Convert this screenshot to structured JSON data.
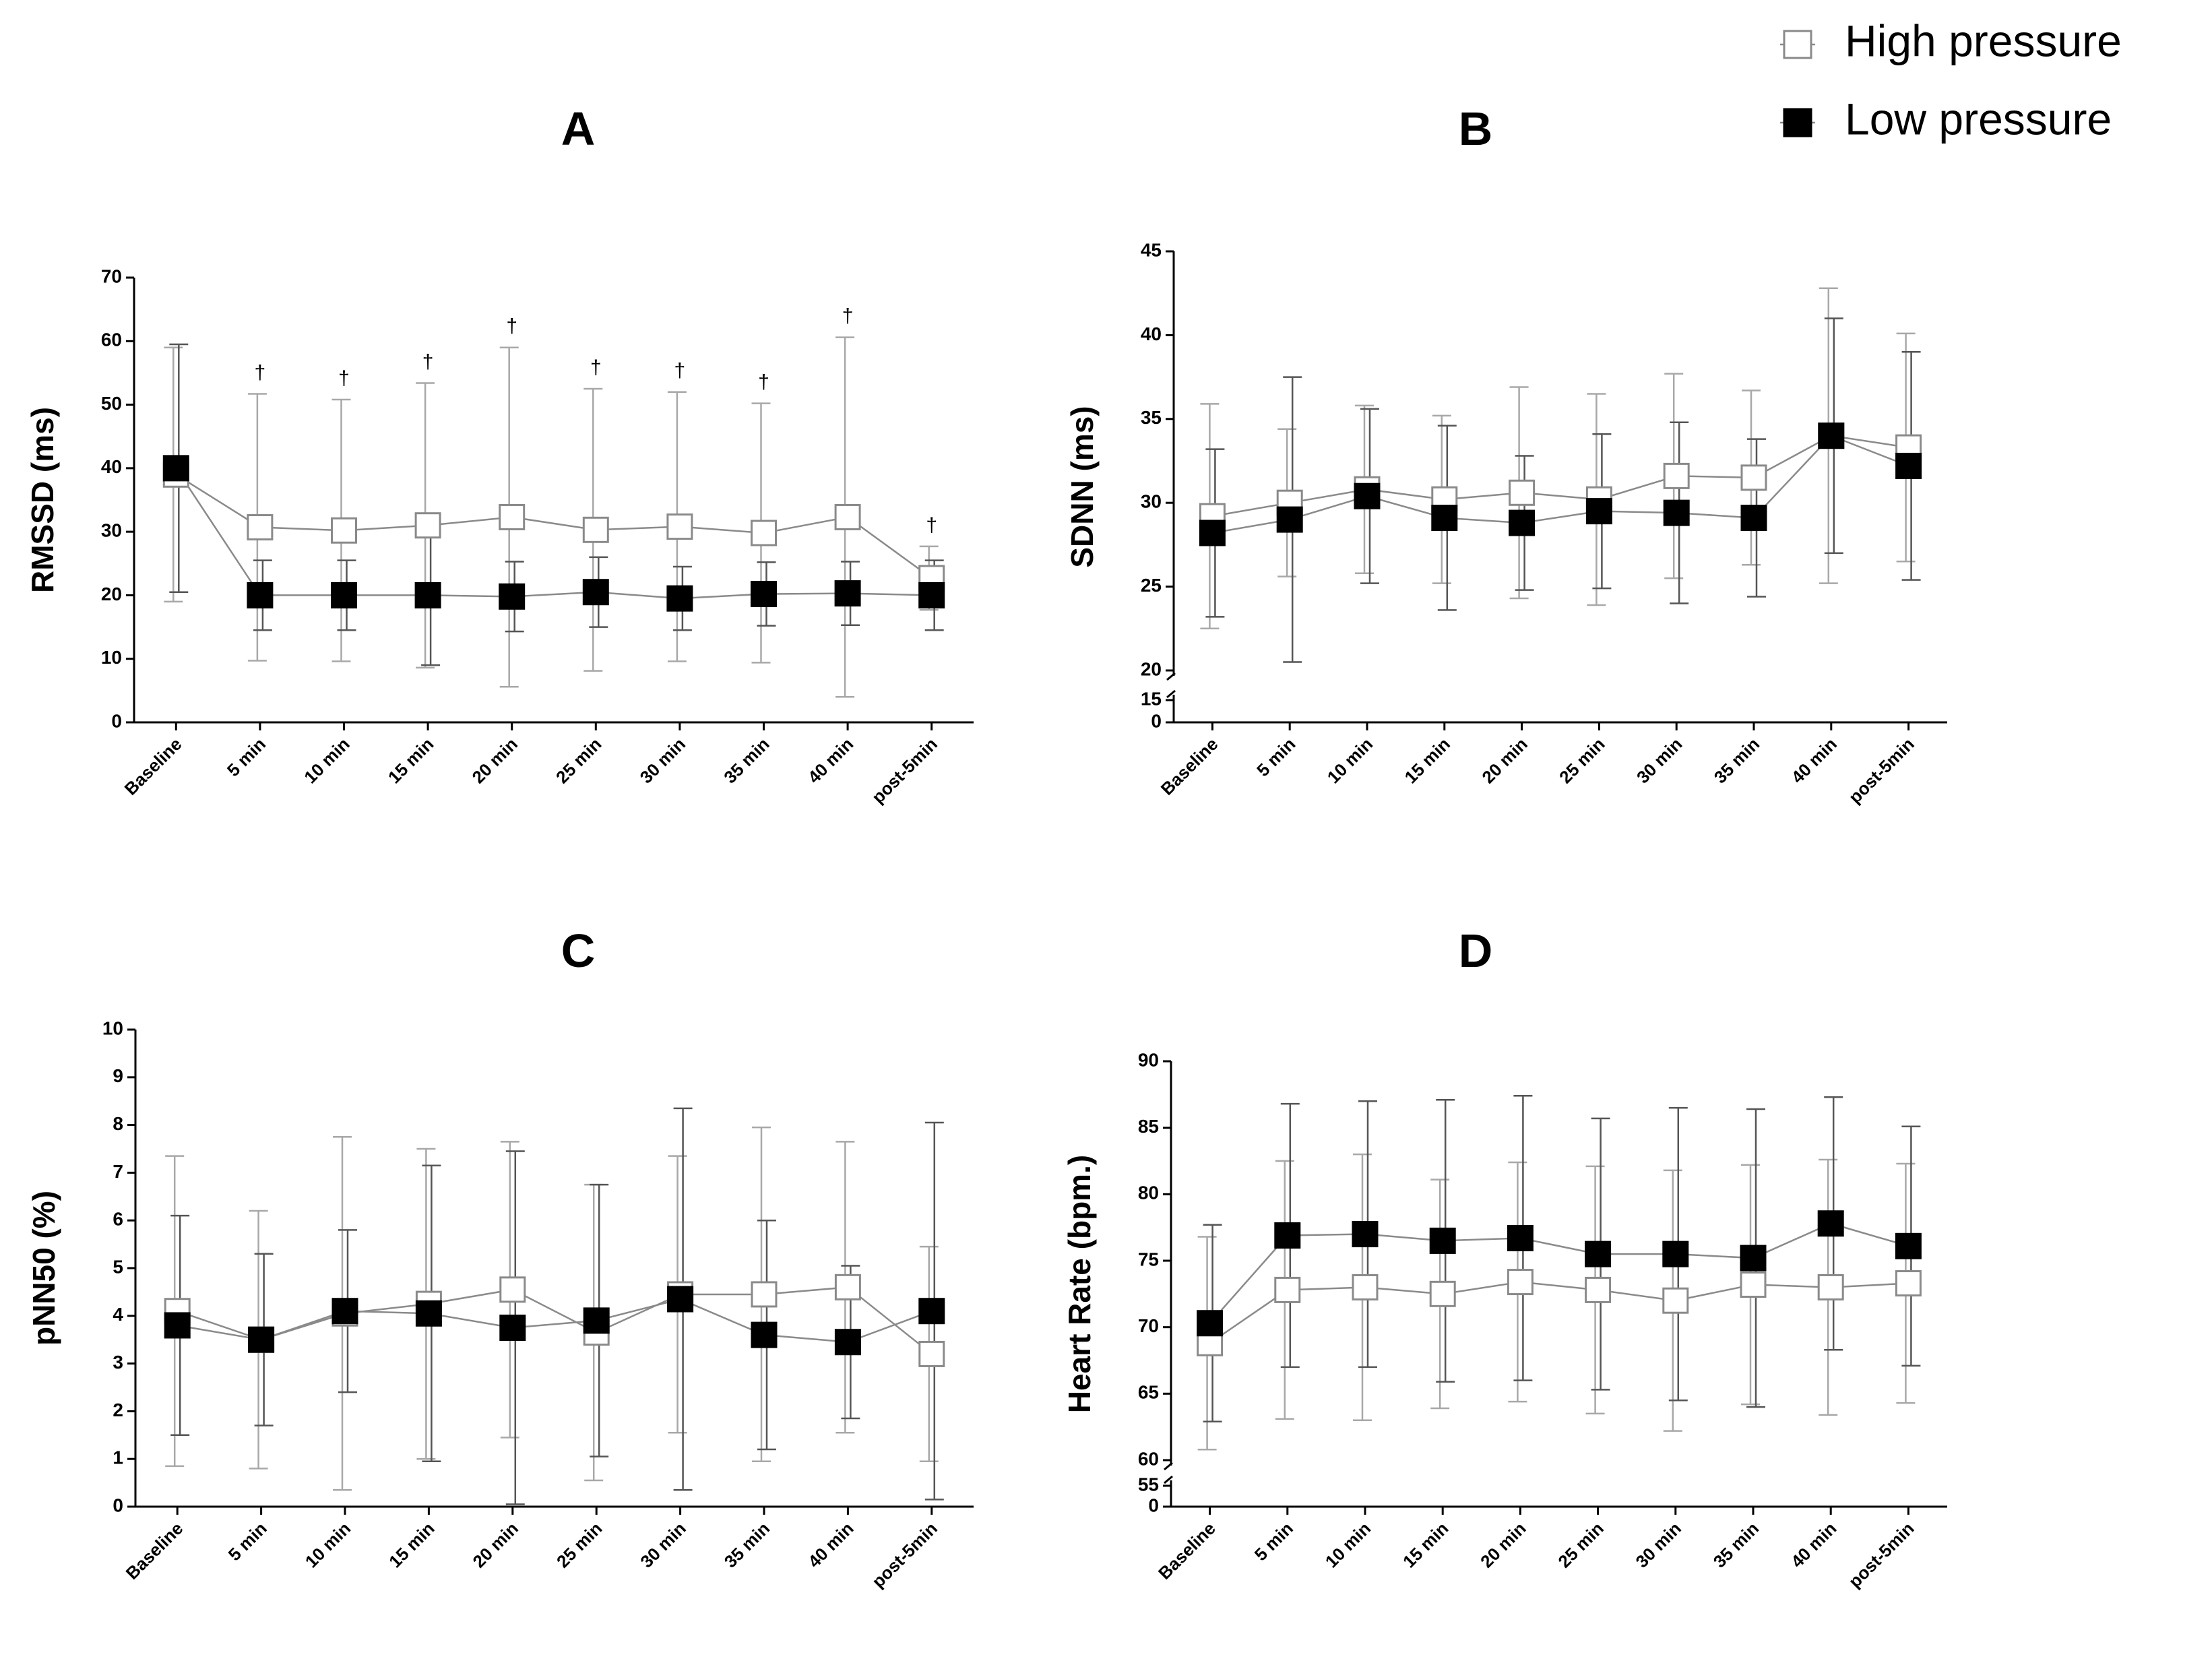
{
  "chart_data": [
    {
      "type": "line",
      "title": "A",
      "y_label": "RMSSD (ms)",
      "categories": [
        "Baseline",
        "5 min",
        "10 min",
        "15 min",
        "20 min",
        "25 min",
        "30 min",
        "35 min",
        "40 min",
        "post-5min"
      ],
      "ylim": [
        0,
        70
      ],
      "yticks": [
        0,
        10,
        20,
        30,
        40,
        50,
        60,
        70
      ],
      "significance": [
        null,
        "†",
        "†",
        "†",
        "†",
        "†",
        "†",
        "†",
        "†",
        "†"
      ],
      "series": [
        {
          "name": "High pressure",
          "color": "#9a9a9a",
          "marker_fill": "#ffffff",
          "values": [
            39,
            30.7,
            30.2,
            31,
            32.3,
            30.3,
            30.8,
            29.8,
            32.3,
            22.7
          ],
          "errors": [
            20,
            21,
            20.6,
            22.4,
            26.7,
            22.2,
            21.2,
            20.4,
            28.3,
            5
          ]
        },
        {
          "name": "Low pressure",
          "color": "#111111",
          "marker_fill": "#000000",
          "values": [
            40,
            20,
            20,
            20,
            19.8,
            20.5,
            19.5,
            20.2,
            20.3,
            20
          ],
          "errors": [
            19.5,
            5.5,
            5.5,
            11,
            5.5,
            5.5,
            5,
            5,
            5,
            5.5
          ]
        }
      ]
    },
    {
      "type": "line",
      "title": "B",
      "y_label": "SDNN (ms)",
      "categories": [
        "Baseline",
        "5 min",
        "10 min",
        "15 min",
        "20 min",
        "25 min",
        "30 min",
        "35 min",
        "40 min",
        "post-5min"
      ],
      "ylim": [
        20,
        45
      ],
      "yticks": [
        20,
        25,
        30,
        35,
        40,
        45
      ],
      "lower_ylim": [
        0,
        15
      ],
      "lower_yticks": [
        0,
        15
      ],
      "series": [
        {
          "values": [
            29.2,
            30,
            30.8,
            30.2,
            30.6,
            30.2,
            31.6,
            31.5,
            34,
            33.3
          ],
          "errors": [
            6.7,
            4.4,
            5,
            5,
            6.3,
            6.3,
            6.1,
            5.2,
            8.8,
            6.8
          ]
        },
        {
          "values": [
            28.2,
            29,
            30.4,
            29.1,
            28.8,
            29.5,
            29.4,
            29.1,
            34,
            32.2
          ],
          "errors": [
            5,
            8.5,
            5.2,
            5.5,
            4,
            4.6,
            5.4,
            4.7,
            7,
            6.8
          ]
        }
      ]
    },
    {
      "type": "line",
      "title": "C",
      "y_label": "pNN50 (%)",
      "categories": [
        "Baseline",
        "5 min",
        "10 min",
        "15 min",
        "20 min",
        "25 min",
        "30 min",
        "35 min",
        "40 min",
        "post-5min"
      ],
      "ylim": [
        0,
        10
      ],
      "yticks": [
        0,
        1,
        2,
        3,
        4,
        5,
        6,
        7,
        8,
        9,
        10
      ],
      "series": [
        {
          "values": [
            4.1,
            3.5,
            4.05,
            4.25,
            4.55,
            3.65,
            4.45,
            4.45,
            4.6,
            3.2
          ],
          "errors": [
            3.25,
            2.7,
            3.7,
            3.25,
            3.1,
            3.1,
            2.9,
            3.5,
            3.05,
            2.25
          ]
        },
        {
          "values": [
            3.8,
            3.5,
            4.1,
            4.05,
            3.75,
            3.9,
            4.35,
            3.6,
            3.45,
            4.1
          ],
          "errors": [
            2.3,
            1.8,
            1.7,
            3.1,
            3.7,
            2.85,
            4,
            2.4,
            1.6,
            3.95
          ]
        }
      ]
    },
    {
      "type": "line",
      "title": "D",
      "y_label": "Heart Rate (bpm.)",
      "categories": [
        "Baseline",
        "5 min",
        "10 min",
        "15 min",
        "20 min",
        "25 min",
        "30 min",
        "35 min",
        "40 min",
        "post-5min"
      ],
      "ylim": [
        60,
        90
      ],
      "yticks": [
        60,
        65,
        70,
        75,
        80,
        85,
        90
      ],
      "lower_ylim": [
        0,
        55
      ],
      "lower_yticks": [
        0,
        55
      ],
      "series": [
        {
          "values": [
            68.8,
            72.8,
            73,
            72.5,
            73.4,
            72.8,
            72,
            73.2,
            73,
            73.3
          ],
          "errors": [
            8,
            9.7,
            10,
            8.6,
            9,
            9.3,
            9.8,
            9,
            9.6,
            9
          ]
        },
        {
          "values": [
            70.3,
            76.9,
            77,
            76.5,
            76.7,
            75.5,
            75.5,
            75.2,
            77.8,
            76.1
          ],
          "errors": [
            7.4,
            9.9,
            10,
            10.6,
            10.7,
            10.2,
            11,
            11.2,
            9.5,
            9
          ]
        }
      ]
    }
  ]
}
